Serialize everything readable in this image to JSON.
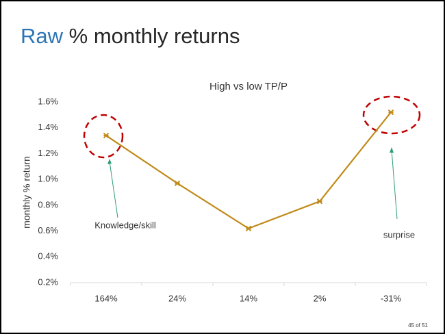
{
  "slide_title": {
    "highlight": "Raw",
    "rest": "% monthly returns"
  },
  "chart_data": {
    "type": "line",
    "title": "High vs low TP/P",
    "y_label": "monthly % return",
    "categories": [
      "164%",
      "24%",
      "14%",
      "2%",
      "-31%"
    ],
    "values": [
      1.34,
      0.97,
      0.62,
      0.83,
      1.52
    ],
    "color": "#c08a1a",
    "ylim": [
      0.2,
      1.6
    ],
    "yticks": [
      {
        "value": 0.2,
        "label": "0.2%"
      },
      {
        "value": 0.4,
        "label": "0.4%"
      },
      {
        "value": 0.6,
        "label": "0.6%"
      },
      {
        "value": 0.8,
        "label": "0.8%"
      },
      {
        "value": 1.0,
        "label": "1.0%"
      },
      {
        "value": 1.2,
        "label": "1.2%"
      },
      {
        "value": 1.4,
        "label": "1.4%"
      },
      {
        "value": 1.6,
        "label": "1.6%"
      }
    ],
    "grid": false,
    "annotations": [
      "Knowledge/skill",
      "surprise"
    ]
  },
  "page_number": "45 of 51"
}
